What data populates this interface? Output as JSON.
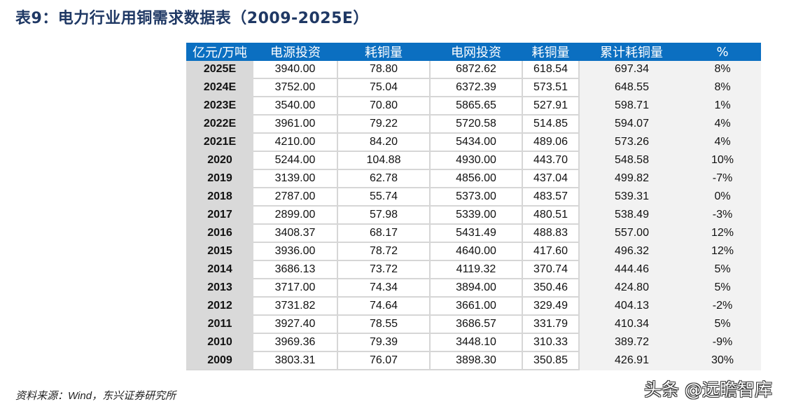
{
  "title": "表9：电力行业用铜需求数据表（2009-2025E）",
  "table": {
    "headers": [
      "亿元/万吨",
      "电源投资",
      "耗铜量",
      "电网投资",
      "耗铜量",
      "累计耗铜量",
      "%"
    ],
    "rows": [
      {
        "year": "2025E",
        "power_source_investment": "3940.00",
        "copper_use_source": "78.80",
        "grid_investment": "6872.62",
        "copper_use_grid": "618.54",
        "cumulative_copper": "697.34",
        "pct": "8%"
      },
      {
        "year": "2024E",
        "power_source_investment": "3752.00",
        "copper_use_source": "75.04",
        "grid_investment": "6372.39",
        "copper_use_grid": "573.51",
        "cumulative_copper": "648.55",
        "pct": "8%"
      },
      {
        "year": "2023E",
        "power_source_investment": "3540.00",
        "copper_use_source": "70.80",
        "grid_investment": "5865.65",
        "copper_use_grid": "527.91",
        "cumulative_copper": "598.71",
        "pct": "1%"
      },
      {
        "year": "2022E",
        "power_source_investment": "3961.00",
        "copper_use_source": "79.22",
        "grid_investment": "5720.58",
        "copper_use_grid": "514.85",
        "cumulative_copper": "594.07",
        "pct": "4%"
      },
      {
        "year": "2021E",
        "power_source_investment": "4210.00",
        "copper_use_source": "84.20",
        "grid_investment": "5434.00",
        "copper_use_grid": "489.06",
        "cumulative_copper": "573.26",
        "pct": "4%"
      },
      {
        "year": "2020",
        "power_source_investment": "5244.00",
        "copper_use_source": "104.88",
        "grid_investment": "4930.00",
        "copper_use_grid": "443.70",
        "cumulative_copper": "548.58",
        "pct": "10%"
      },
      {
        "year": "2019",
        "power_source_investment": "3139.00",
        "copper_use_source": "62.78",
        "grid_investment": "4856.00",
        "copper_use_grid": "437.04",
        "cumulative_copper": "499.82",
        "pct": "-7%"
      },
      {
        "year": "2018",
        "power_source_investment": "2787.00",
        "copper_use_source": "55.74",
        "grid_investment": "5373.00",
        "copper_use_grid": "483.57",
        "cumulative_copper": "539.31",
        "pct": "0%"
      },
      {
        "year": "2017",
        "power_source_investment": "2899.00",
        "copper_use_source": "57.98",
        "grid_investment": "5339.00",
        "copper_use_grid": "480.51",
        "cumulative_copper": "538.49",
        "pct": "-3%"
      },
      {
        "year": "2016",
        "power_source_investment": "3408.37",
        "copper_use_source": "68.17",
        "grid_investment": "5431.49",
        "copper_use_grid": "488.83",
        "cumulative_copper": "557.00",
        "pct": "12%"
      },
      {
        "year": "2015",
        "power_source_investment": "3936.00",
        "copper_use_source": "78.72",
        "grid_investment": "4640.00",
        "copper_use_grid": "417.60",
        "cumulative_copper": "496.32",
        "pct": "12%"
      },
      {
        "year": "2014",
        "power_source_investment": "3686.13",
        "copper_use_source": "73.72",
        "grid_investment": "4119.32",
        "copper_use_grid": "370.74",
        "cumulative_copper": "444.46",
        "pct": "5%"
      },
      {
        "year": "2013",
        "power_source_investment": "3717.00",
        "copper_use_source": "74.34",
        "grid_investment": "3894.00",
        "copper_use_grid": "350.46",
        "cumulative_copper": "424.80",
        "pct": "5%"
      },
      {
        "year": "2012",
        "power_source_investment": "3731.82",
        "copper_use_source": "74.64",
        "grid_investment": "3661.00",
        "copper_use_grid": "329.49",
        "cumulative_copper": "404.13",
        "pct": "-2%"
      },
      {
        "year": "2011",
        "power_source_investment": "3927.40",
        "copper_use_source": "78.55",
        "grid_investment": "3686.57",
        "copper_use_grid": "331.79",
        "cumulative_copper": "410.34",
        "pct": "5%"
      },
      {
        "year": "2010",
        "power_source_investment": "3969.36",
        "copper_use_source": "79.39",
        "grid_investment": "3448.10",
        "copper_use_grid": "310.33",
        "cumulative_copper": "389.72",
        "pct": "-9%"
      },
      {
        "year": "2009",
        "power_source_investment": "3803.31",
        "copper_use_source": "76.07",
        "grid_investment": "3898.30",
        "copper_use_grid": "350.85",
        "cumulative_copper": "426.91",
        "pct": "30%"
      }
    ]
  },
  "source": {
    "prefix": "资料来源：",
    "wind": "Wind",
    "suffix": "，东兴证券研究所"
  },
  "watermark": "头条 @远瞻智库",
  "colors": {
    "title": "#1f3864",
    "header_bg": "#0b6fc1",
    "year_col_bg": "#d9d9d9",
    "right_cols_bg": "#f2f2f2"
  }
}
